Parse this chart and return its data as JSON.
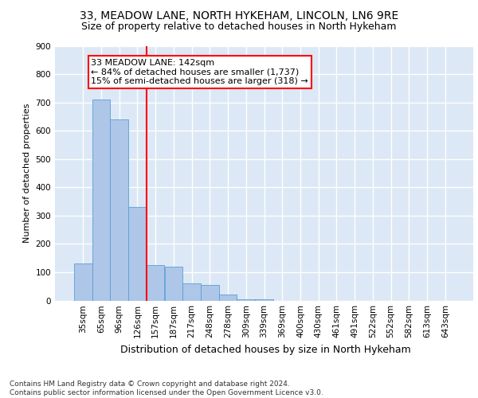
{
  "title1": "33, MEADOW LANE, NORTH HYKEHAM, LINCOLN, LN6 9RE",
  "title2": "Size of property relative to detached houses in North Hykeham",
  "xlabel": "Distribution of detached houses by size in North Hykeham",
  "ylabel": "Number of detached properties",
  "categories": [
    "35sqm",
    "65sqm",
    "96sqm",
    "126sqm",
    "157sqm",
    "187sqm",
    "217sqm",
    "248sqm",
    "278sqm",
    "309sqm",
    "339sqm",
    "369sqm",
    "400sqm",
    "430sqm",
    "461sqm",
    "491sqm",
    "522sqm",
    "552sqm",
    "582sqm",
    "613sqm",
    "643sqm"
  ],
  "values": [
    130,
    710,
    640,
    330,
    125,
    120,
    60,
    55,
    20,
    5,
    5,
    0,
    0,
    0,
    0,
    0,
    0,
    0,
    0,
    0,
    0
  ],
  "bar_color": "#aec6e8",
  "bar_edge_color": "#5a9fd4",
  "property_line_x": 3.5,
  "annotation_text": "33 MEADOW LANE: 142sqm\n← 84% of detached houses are smaller (1,737)\n15% of semi-detached houses are larger (318) →",
  "annotation_box_color": "white",
  "annotation_box_edge_color": "red",
  "vline_color": "red",
  "ylim": [
    0,
    900
  ],
  "yticks": [
    0,
    100,
    200,
    300,
    400,
    500,
    600,
    700,
    800,
    900
  ],
  "footnote": "Contains HM Land Registry data © Crown copyright and database right 2024.\nContains public sector information licensed under the Open Government Licence v3.0.",
  "background_color": "#dce8f5",
  "grid_color": "white",
  "title1_fontsize": 10,
  "title2_fontsize": 9,
  "xlabel_fontsize": 9,
  "ylabel_fontsize": 8,
  "tick_fontsize": 7.5,
  "annotation_fontsize": 8,
  "footnote_fontsize": 6.5
}
